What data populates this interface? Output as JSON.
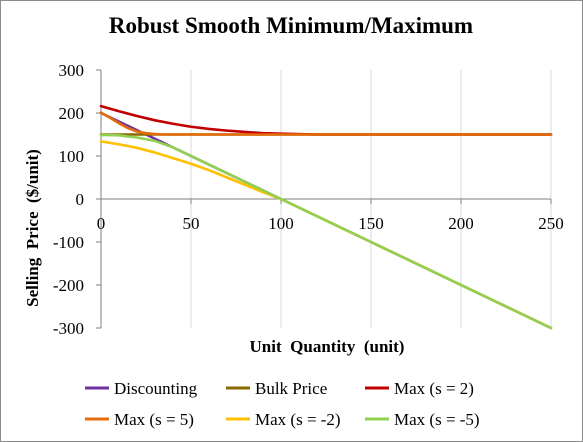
{
  "chart_data": {
    "type": "line",
    "title": "Robust Smooth Minimum/Maximum",
    "xlabel": "Unit  Quantity  (unit)",
    "ylabel": "Selling  Price  ($/unit)",
    "xlim": [
      0,
      250
    ],
    "ylim": [
      -300,
      300
    ],
    "x_ticks": [
      0,
      50,
      100,
      150,
      200,
      250
    ],
    "x_tick_labels": [
      "0",
      "50",
      "100",
      "150",
      "200",
      "250"
    ],
    "y_ticks": [
      300,
      200,
      100,
      0,
      -100,
      -200,
      -300
    ],
    "y_tick_labels": [
      "300",
      "200",
      "100",
      "0",
      "-100",
      "-200",
      "-300"
    ],
    "grid": "vertical",
    "legend_position": "bottom",
    "series": [
      {
        "name": "Discounting",
        "color": "#7030A0",
        "x": [
          0,
          25,
          50,
          100,
          150,
          200,
          250
        ],
        "y": [
          200,
          150,
          100,
          0,
          -100,
          -200,
          -300
        ]
      },
      {
        "name": "Bulk Price",
        "color": "#8B6A00",
        "x": [
          0,
          250
        ],
        "y": [
          150,
          150
        ]
      },
      {
        "name": "Max (s = 2)",
        "color": "#C00000",
        "x": [
          0,
          10,
          20,
          30,
          40,
          50,
          60,
          70,
          80,
          90,
          100,
          120,
          150,
          200,
          250
        ],
        "y": [
          216,
          204,
          193,
          183,
          175,
          168,
          163,
          159,
          156,
          153,
          152,
          150,
          150,
          150,
          150
        ]
      },
      {
        "name": "Max (s = 5)",
        "color": "#E46C0A",
        "x": [
          0,
          5,
          10,
          15,
          20,
          25,
          30,
          35,
          40,
          50,
          60,
          250
        ],
        "y": [
          201,
          189,
          176,
          165,
          157,
          153,
          151,
          150,
          150,
          150,
          150,
          150
        ]
      },
      {
        "name": "Max (s = -2)",
        "color": "#FFC000",
        "x": [
          0,
          10,
          20,
          30,
          40,
          50,
          60,
          70,
          80,
          90,
          100,
          120,
          150,
          200,
          250
        ],
        "y": [
          134,
          127,
          119,
          108,
          95,
          82,
          67,
          50,
          33,
          16,
          0,
          -40,
          -100,
          -200,
          -300
        ]
      },
      {
        "name": "Max (s = -5)",
        "color": "#92D050",
        "x": [
          0,
          10,
          20,
          25,
          30,
          40,
          50,
          60,
          80,
          100,
          150,
          200,
          250
        ],
        "y": [
          149,
          148,
          143,
          139,
          135,
          120,
          100,
          80,
          40,
          0,
          -100,
          -200,
          -300
        ]
      }
    ]
  }
}
